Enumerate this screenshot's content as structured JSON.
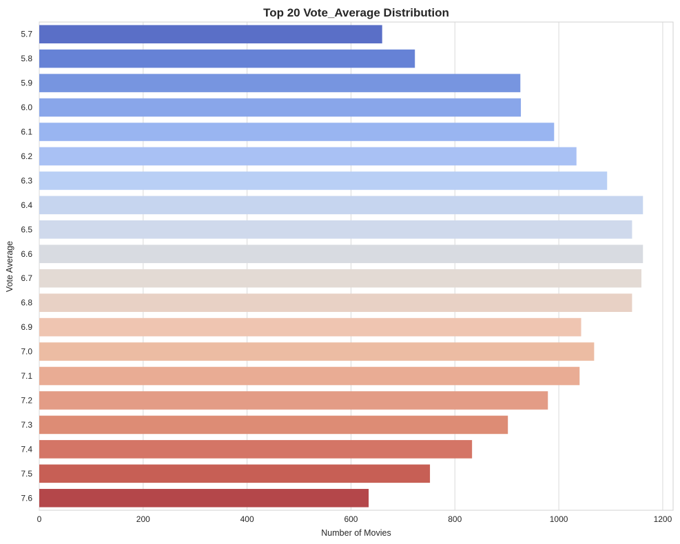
{
  "chart_data": {
    "type": "bar",
    "orientation": "horizontal",
    "title": "Top 20 Vote_Average Distribution",
    "xlabel": "Number of Movies",
    "ylabel": "Vote Average",
    "xlim": [
      0,
      1220
    ],
    "xticks": [
      0,
      200,
      400,
      600,
      800,
      1000,
      1200
    ],
    "grid": true,
    "categories": [
      "5.7",
      "5.8",
      "5.9",
      "6.0",
      "6.1",
      "6.2",
      "6.3",
      "6.4",
      "6.5",
      "6.6",
      "6.7",
      "6.8",
      "6.9",
      "7.0",
      "7.1",
      "7.2",
      "7.3",
      "7.4",
      "7.5",
      "7.6"
    ],
    "values": [
      660,
      723,
      926,
      927,
      991,
      1034,
      1093,
      1162,
      1141,
      1162,
      1159,
      1141,
      1043,
      1068,
      1040,
      979,
      902,
      833,
      752,
      634
    ],
    "colors": [
      "#5a6fc7",
      "#6682d6",
      "#7795e0",
      "#89a6ea",
      "#99b5f1",
      "#a9c1f4",
      "#b9cff5",
      "#c6d5ef",
      "#cfd9ec",
      "#d8dbe1",
      "#e3dad4",
      "#e8d1c5",
      "#efc5b1",
      "#ecbca3",
      "#e9ac94",
      "#e39c86",
      "#dd8c75",
      "#d47566",
      "#c75f55",
      "#b4474a"
    ]
  }
}
